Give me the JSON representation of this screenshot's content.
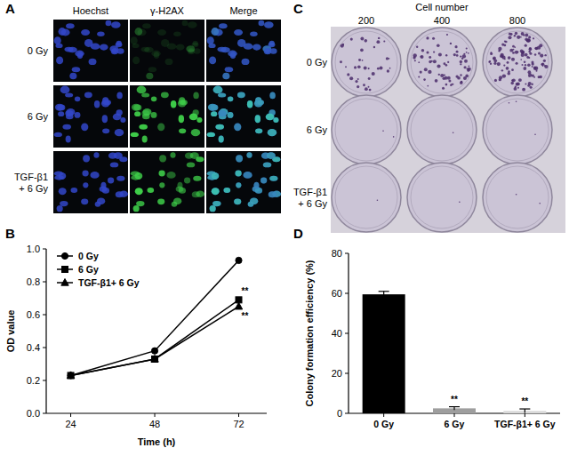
{
  "figure": {
    "panel_a": {
      "panel": "A",
      "columns": [
        "Hoechst",
        "γ-H2AX",
        "Merge"
      ],
      "rows": [
        [
          "0 Gy"
        ],
        [
          "6 Gy"
        ],
        [
          "TGF-β1",
          "+ 6 Gy"
        ]
      ]
    },
    "panel_c": {
      "panel": "C",
      "header": "Cell number",
      "columns": [
        200,
        400,
        800
      ],
      "rows": [
        [
          "0 Gy"
        ],
        [
          "6 Gy"
        ],
        [
          "TGF-β1",
          "+ 6 Gy"
        ]
      ]
    }
  },
  "chart_data": [
    {
      "type": "line",
      "panel": "B",
      "x_label": "Time (h)",
      "y_label": "OD value",
      "x": [
        24,
        48,
        72
      ],
      "xlim": [
        17,
        80
      ],
      "xticks": [
        24,
        48,
        72
      ],
      "ylim": [
        0,
        1
      ],
      "yticks": [
        {
          "value": 0,
          "label": "0.0"
        },
        {
          "value": 0.2,
          "label": "0.2"
        },
        {
          "value": 0.4,
          "label": "0.4"
        },
        {
          "value": 0.6,
          "label": "0.6"
        },
        {
          "value": 0.8,
          "label": "0.8"
        },
        {
          "value": 1,
          "label": "1.0"
        }
      ],
      "grid": false,
      "legend": "upper left",
      "series": [
        {
          "name": "0 Gy",
          "color": "#000000",
          "marker": "circle",
          "line_style": "solid",
          "values": [
            0.23,
            0.38,
            0.93
          ]
        },
        {
          "name": "6 Gy",
          "color": "#000000",
          "marker": "square",
          "line_style": "solid",
          "values": [
            0.23,
            0.33,
            0.69
          ],
          "significance": [
            null,
            null,
            "**"
          ]
        },
        {
          "name": "TGF-β1+ 6 Gy",
          "color": "#000000",
          "marker": "triangle",
          "line_style": "solid",
          "values": [
            0.23,
            0.33,
            0.65
          ],
          "significance": [
            null,
            null,
            "**"
          ]
        }
      ]
    },
    {
      "type": "bar",
      "panel": "D",
      "y_label": "Colony formation efficiency (%)",
      "categories": [
        "0 Gy",
        "6 Gy",
        "TGF-β1+ 6 Gy"
      ],
      "values": [
        59.5,
        2.5,
        1.2
      ],
      "errors": [
        1.5,
        0.8,
        1.0
      ],
      "significance": [
        null,
        "**",
        "**"
      ],
      "colors": [
        "#000000",
        "#9e9e9e",
        "#d9d9d9"
      ],
      "ylim": [
        0,
        80
      ],
      "yticks": [
        0,
        20,
        40,
        60,
        80
      ],
      "grid": false
    }
  ]
}
